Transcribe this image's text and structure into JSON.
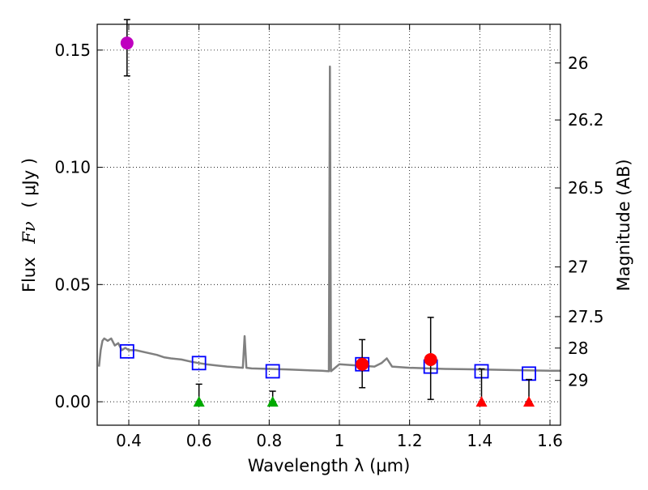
{
  "chart_data": {
    "type": "scatter",
    "xlabel": "Wavelength  λ (μm)",
    "ylabel_left_prefix": "Flux",
    "ylabel_left_math": "Fν",
    "ylabel_left_suffix": "( μJy )",
    "ylabel_right": "Magnitude (AB)",
    "xlim": [
      0.31,
      1.63
    ],
    "ylim": [
      -0.01,
      0.161
    ],
    "xticks": [
      0.4,
      0.6,
      0.8,
      1.0,
      1.2,
      1.4,
      1.6
    ],
    "xtick_labels": [
      "0.4",
      "0.6",
      "0.8",
      "1",
      "1.2",
      "1.4",
      "1.6"
    ],
    "yticks": [
      0.0,
      0.05,
      0.1,
      0.15
    ],
    "ytick_labels": [
      "0.00",
      "0.05",
      "0.10",
      "0.15"
    ],
    "right_ticks": [
      {
        "label": "26",
        "flux": 0.1445
      },
      {
        "label": "26.2",
        "flux": 0.1202
      },
      {
        "label": "26.5",
        "flux": 0.0912
      },
      {
        "label": "27",
        "flux": 0.0575
      },
      {
        "label": "27.5",
        "flux": 0.0363
      },
      {
        "label": "28",
        "flux": 0.0229
      },
      {
        "label": "29",
        "flux": 0.0091
      }
    ],
    "grid": true,
    "series": [
      {
        "name": "model spectrum",
        "kind": "line",
        "color": "#808080",
        "x": [
          0.315,
          0.32,
          0.325,
          0.33,
          0.34,
          0.35,
          0.36,
          0.37,
          0.38,
          0.39,
          0.4,
          0.42,
          0.45,
          0.48,
          0.5,
          0.52,
          0.55,
          0.58,
          0.6,
          0.62,
          0.65,
          0.68,
          0.7,
          0.725,
          0.73,
          0.735,
          0.75,
          0.8,
          0.85,
          0.9,
          0.95,
          0.97,
          0.973,
          0.976,
          0.98,
          1.0,
          1.05,
          1.1,
          1.12,
          1.135,
          1.15,
          1.2,
          1.3,
          1.4,
          1.5,
          1.6,
          1.63
        ],
        "y": [
          0.015,
          0.022,
          0.026,
          0.027,
          0.026,
          0.027,
          0.024,
          0.025,
          0.022,
          0.023,
          0.022,
          0.022,
          0.021,
          0.02,
          0.019,
          0.0185,
          0.018,
          0.017,
          0.0165,
          0.016,
          0.0155,
          0.015,
          0.0148,
          0.0145,
          0.028,
          0.0145,
          0.0142,
          0.014,
          0.0138,
          0.0135,
          0.0132,
          0.013,
          0.143,
          0.013,
          0.0135,
          0.016,
          0.0155,
          0.015,
          0.0165,
          0.0185,
          0.015,
          0.0145,
          0.014,
          0.0138,
          0.0135,
          0.0132,
          0.0132
        ]
      },
      {
        "name": "model photometry",
        "kind": "open-square",
        "color": "#0000ff",
        "x": [
          0.395,
          0.6,
          0.81,
          1.065,
          1.26,
          1.405,
          1.54
        ],
        "y": [
          0.0215,
          0.0165,
          0.013,
          0.016,
          0.015,
          0.013,
          0.012
        ]
      },
      {
        "name": "purple detection",
        "kind": "point-errorbar",
        "color": "#bf00bf",
        "x": [
          0.395
        ],
        "y": [
          0.153
        ],
        "yerr_low": [
          0.014
        ],
        "yerr_high": [
          0.01
        ]
      },
      {
        "name": "red detections",
        "kind": "point-errorbar",
        "color": "#ff0000",
        "x": [
          1.065,
          1.26
        ],
        "y": [
          0.016,
          0.018
        ],
        "yerr_low": [
          0.01,
          0.017
        ],
        "yerr_high": [
          0.0105,
          0.018
        ]
      },
      {
        "name": "green upper limits",
        "kind": "triangle-errorbar",
        "color": "#00aa00",
        "x": [
          0.6,
          0.81
        ],
        "y": [
          0.0,
          0.0
        ],
        "yerr_low": [
          0.0,
          0.0
        ],
        "yerr_high": [
          0.0075,
          0.0045
        ]
      },
      {
        "name": "red upper limits",
        "kind": "triangle-errorbar",
        "color": "#ff0000",
        "x": [
          1.405,
          1.54
        ],
        "y": [
          0.0,
          0.0
        ],
        "yerr_low": [
          0.0,
          0.0
        ],
        "yerr_high": [
          0.014,
          0.0095
        ]
      }
    ]
  }
}
